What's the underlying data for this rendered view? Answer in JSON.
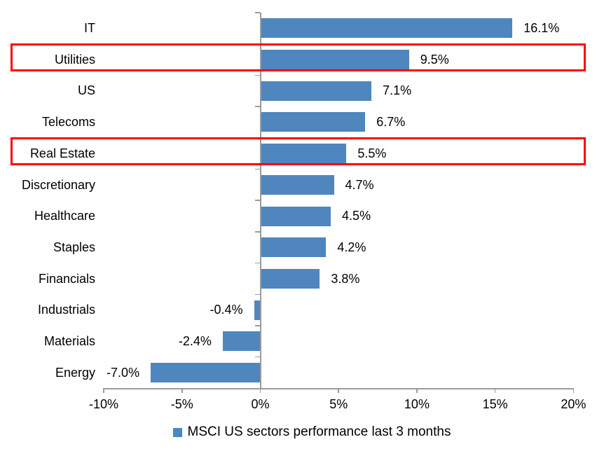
{
  "chart_data": {
    "type": "bar",
    "orientation": "horizontal",
    "title": "",
    "categories": [
      "IT",
      "Utilities",
      "US",
      "Telecoms",
      "Real Estate",
      "Discretionary",
      "Healthcare",
      "Staples",
      "Financials",
      "Industrials",
      "Materials",
      "Energy"
    ],
    "values": [
      16.1,
      9.5,
      7.1,
      6.7,
      5.5,
      4.7,
      4.5,
      4.2,
      3.8,
      -0.4,
      -2.4,
      -7.0
    ],
    "value_labels": [
      "16.1%",
      "9.5%",
      "7.1%",
      "6.7%",
      "5.5%",
      "4.7%",
      "4.5%",
      "4.2%",
      "3.8%",
      "-0.4%",
      "-2.4%",
      "-7.0%"
    ],
    "xlim": [
      -10,
      20
    ],
    "x_ticks": [
      {
        "value": -10,
        "label": "-10%"
      },
      {
        "value": -5,
        "label": "-5%"
      },
      {
        "value": 0,
        "label": "0%"
      },
      {
        "value": 5,
        "label": "5%"
      },
      {
        "value": 10,
        "label": "10%"
      },
      {
        "value": 15,
        "label": "15%"
      },
      {
        "value": 20,
        "label": "20%"
      }
    ],
    "grid": false,
    "legend": "MSCI US sectors performance last 3 months",
    "legend_position": "bottom-center",
    "highlighted_rows": [
      1,
      4
    ],
    "colors": {
      "bar": "#4E86BD",
      "highlight_border": "#FF0000",
      "axis": "#9B9B9B",
      "text": "#000000",
      "background": "#FFFFFF"
    }
  }
}
